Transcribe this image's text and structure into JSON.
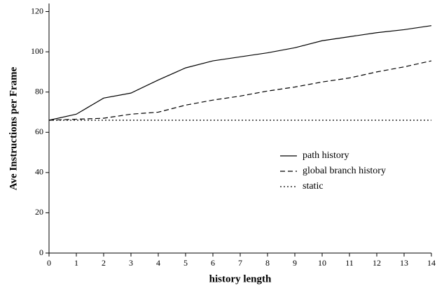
{
  "chart_data": {
    "type": "line",
    "xlabel": "history length",
    "ylabel": "Ave Instructions per Frame",
    "x": [
      0,
      1,
      2,
      3,
      4,
      5,
      6,
      7,
      8,
      9,
      10,
      11,
      12,
      13,
      14
    ],
    "series": [
      {
        "name": "path history",
        "color": "#000000",
        "dash": "solid",
        "values": [
          66,
          69,
          77,
          79.5,
          86,
          92,
          95.5,
          97.5,
          99.5,
          102,
          105.5,
          107.5,
          109.5,
          111,
          113
        ]
      },
      {
        "name": "global branch history",
        "color": "#000000",
        "dash": "dashed",
        "values": [
          66,
          66.5,
          67,
          69,
          70,
          73.5,
          76,
          78,
          80.5,
          82.5,
          85,
          87,
          90,
          92.5,
          95.5
        ]
      },
      {
        "name": "static",
        "color": "#000000",
        "dash": "dotted",
        "values": [
          66,
          66,
          66,
          66,
          66,
          66,
          66,
          66,
          66,
          66,
          66,
          66,
          66,
          66,
          66
        ]
      }
    ],
    "xlim": [
      0,
      14
    ],
    "xticks": [
      0,
      1,
      2,
      3,
      4,
      5,
      6,
      7,
      8,
      9,
      10,
      11,
      12,
      13,
      14
    ],
    "ylim": [
      0,
      124
    ],
    "yticks": [
      0,
      20,
      40,
      60,
      80,
      100,
      120
    ],
    "grid": false,
    "legend": "right"
  }
}
